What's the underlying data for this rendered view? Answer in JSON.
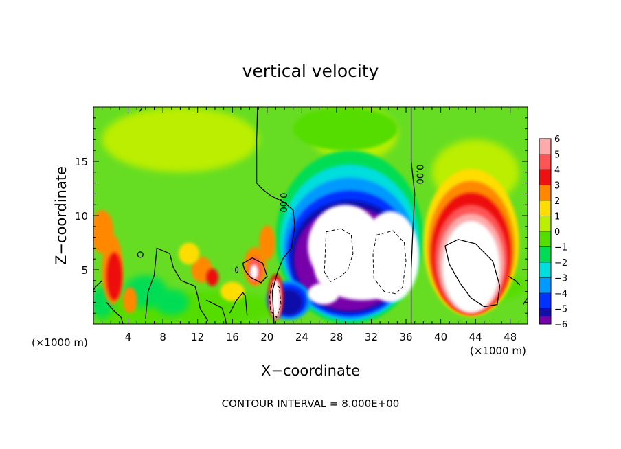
{
  "chart_data": {
    "type": "heatmap",
    "title": "vertical velocity",
    "xlabel": "X−coordinate",
    "ylabel": "Z−coordinate",
    "x_unit_left": "(×1000 m)",
    "x_unit_right": "(×1000 m)",
    "xlim": [
      0,
      50
    ],
    "ylim": [
      0,
      20
    ],
    "x_ticks": [
      4,
      8,
      12,
      16,
      20,
      24,
      28,
      32,
      36,
      40,
      44,
      48
    ],
    "y_ticks": [
      5,
      10,
      15
    ],
    "x_tick_labels": [
      "4",
      "8",
      "12",
      "16",
      "20",
      "24",
      "28",
      "32",
      "36",
      "40",
      "44",
      "48"
    ],
    "y_tick_labels": [
      "5",
      "10",
      "15"
    ],
    "colorbar": {
      "levels": [
        6,
        5,
        4,
        3,
        2,
        1,
        0,
        -1,
        -2,
        -3,
        -4,
        -5,
        -6
      ],
      "labels": [
        "6",
        "5",
        "4",
        "3",
        "2",
        "1",
        "0",
        "−1",
        "−2",
        "−3",
        "−4",
        "−5",
        "−6"
      ],
      "colors": [
        "#ffaaaa",
        "#ff5555",
        "#ee1111",
        "#ff8800",
        "#ffdd00",
        "#bbee00",
        "#55dd00",
        "#00dd55",
        "#00dddd",
        "#0099ff",
        "#0033ff",
        "#1111aa",
        "#7700aa"
      ],
      "above_max_color": "#ffffff",
      "below_min_color": "#ffffff"
    },
    "features": [
      {
        "name": "updraft",
        "x": 43.5,
        "z": 5.5,
        "peak": 8
      },
      {
        "name": "downdraft",
        "x": 29.5,
        "z": 6.5,
        "peak": -8
      },
      {
        "name": "downdraft",
        "x": 34.5,
        "z": 6.0,
        "peak": -7
      },
      {
        "name": "updraft",
        "x": 18.5,
        "z": 5.0,
        "peak": 6
      },
      {
        "name": "updraft",
        "x": 21.0,
        "z": 2.0,
        "peak": 7
      },
      {
        "name": "updraft",
        "x": 2.5,
        "z": 4.5,
        "peak": 4
      }
    ],
    "contour_labels": [
      {
        "text": "0.00",
        "x": 21.8,
        "z": 11.2
      },
      {
        "text": "0.00",
        "x": 37.5,
        "z": 13.8
      }
    ],
    "footer": "CONTOUR INTERVAL = 8.000E+00"
  }
}
